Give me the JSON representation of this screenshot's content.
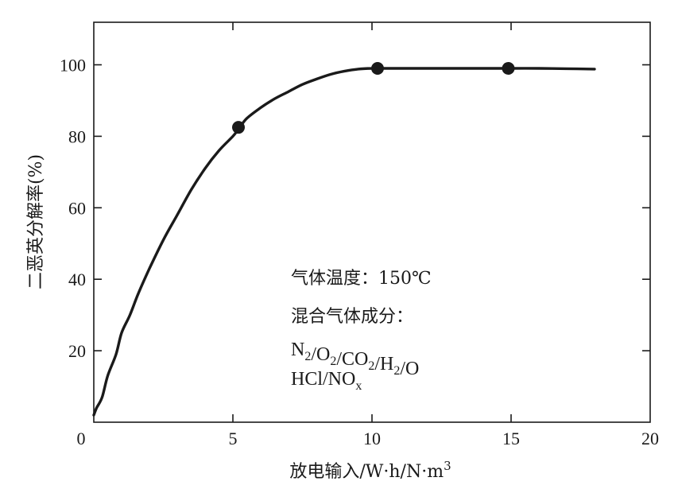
{
  "chart_data": {
    "type": "line",
    "title": "",
    "xlabel": "放电输入/W·h/N·m",
    "xlabel_sup": "3",
    "ylabel": "二恶英分解率(%)",
    "xlim": [
      0,
      20
    ],
    "ylim": [
      0,
      110
    ],
    "x_ticks": [
      0,
      5,
      10,
      15,
      20
    ],
    "x_tick_labels": [
      "0",
      "5",
      "10",
      "15",
      "20"
    ],
    "y_ticks": [
      20,
      40,
      60,
      80,
      100
    ],
    "y_tick_labels": [
      "20",
      "40",
      "60",
      "80",
      "100"
    ],
    "grid": false,
    "legend": "none",
    "series": [
      {
        "x": [
          0,
          0.1,
          0.3,
          0.5,
          0.8,
          1.0,
          1.3,
          1.6,
          2.0,
          2.5,
          3.0,
          3.5,
          4.0,
          4.5,
          5.0,
          5.2,
          5.5,
          6.0,
          6.5,
          7.0,
          7.5,
          8.0,
          8.5,
          9.0,
          9.5,
          10.0,
          10.2,
          11.0,
          12.0,
          13.0,
          14.0,
          15.0,
          16.0,
          17.0,
          18.0
        ],
        "values": [
          2,
          4,
          7,
          13,
          19,
          25,
          30,
          36,
          43,
          51,
          58,
          65,
          71,
          76,
          80,
          82,
          85,
          88,
          90.5,
          92.5,
          94.5,
          96,
          97.3,
          98.2,
          98.8,
          99.0,
          99.0,
          99.0,
          99.0,
          99.0,
          99.0,
          99.0,
          99.0,
          98.9,
          98.8
        ]
      }
    ],
    "markers": [
      {
        "x": 5.2,
        "y": 82.5
      },
      {
        "x": 10.2,
        "y": 99.0
      },
      {
        "x": 14.9,
        "y": 99.0
      }
    ],
    "colors": {
      "line": "#1a1a1a",
      "marker": "#1a1a1a",
      "axis": "#1a1a1a"
    },
    "annotations": {
      "gas_temp": "气体温度：150℃",
      "mix_title": "混合气体成分：",
      "formula_line1_parts": [
        {
          "t": "N",
          "sub": "2"
        },
        {
          "t": "/O",
          "sub": "2"
        },
        {
          "t": "/CO",
          "sub": "2"
        },
        {
          "t": "/H",
          "sub": "2"
        },
        {
          "t": "/O",
          "sub": ""
        }
      ],
      "formula_line2_parts": [
        {
          "t": "HCl/NO",
          "sub": "x"
        }
      ]
    }
  }
}
